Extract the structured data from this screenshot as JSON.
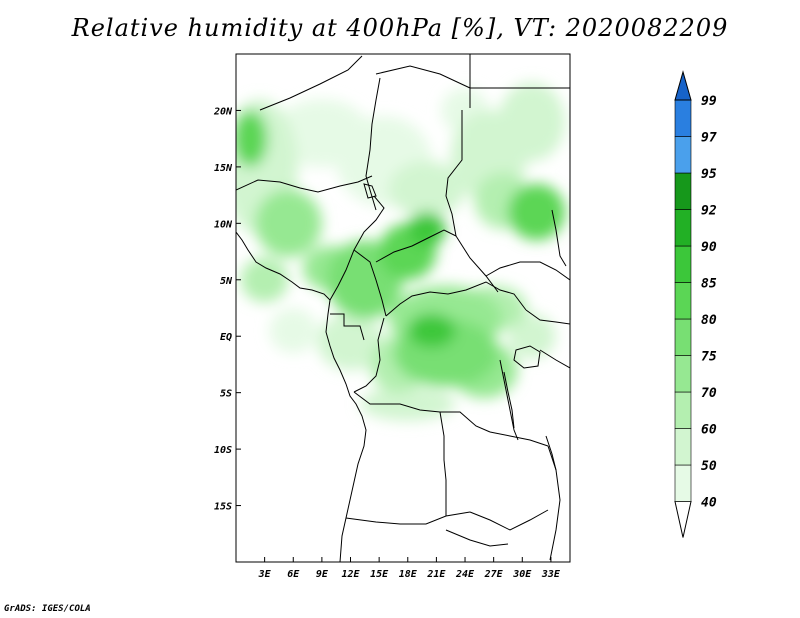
{
  "title": "Relative humidity at 400hPa [%], VT: 2020082209",
  "footer": "GrADS: IGES/COLA",
  "map": {
    "projection": "lat-lon",
    "lon_range": [
      0,
      35
    ],
    "lat_range": [
      -20,
      25
    ],
    "lon_ticks": [
      {
        "value": 3,
        "label": "3E"
      },
      {
        "value": 6,
        "label": "6E"
      },
      {
        "value": 9,
        "label": "9E"
      },
      {
        "value": 12,
        "label": "12E"
      },
      {
        "value": 15,
        "label": "15E"
      },
      {
        "value": 18,
        "label": "18E"
      },
      {
        "value": 21,
        "label": "21E"
      },
      {
        "value": 24,
        "label": "24E"
      },
      {
        "value": 27,
        "label": "27E"
      },
      {
        "value": 30,
        "label": "30E"
      },
      {
        "value": 33,
        "label": "33E"
      }
    ],
    "lat_ticks": [
      {
        "value": 20,
        "label": "20N"
      },
      {
        "value": 15,
        "label": "15N"
      },
      {
        "value": 10,
        "label": "10N"
      },
      {
        "value": 5,
        "label": "5N"
      },
      {
        "value": 0,
        "label": "EQ"
      },
      {
        "value": -5,
        "label": "5S"
      },
      {
        "value": -10,
        "label": "10S"
      },
      {
        "value": -15,
        "label": "15S"
      }
    ]
  },
  "colorbar": {
    "levels": [
      "40",
      "50",
      "60",
      "70",
      "75",
      "80",
      "85",
      "90",
      "92",
      "95",
      "97",
      "99"
    ],
    "colors": [
      "#ffffff",
      "#e6fae6",
      "#d2f5d0",
      "#b4efb0",
      "#96e892",
      "#78df73",
      "#5bd655",
      "#3cc73a",
      "#22b025",
      "#16981b",
      "#4aa0ec",
      "#2a7fe0",
      "#1763c9"
    ]
  },
  "humidity_regions": [
    {
      "lon": 1.5,
      "lat": 17.5,
      "r_lon": 1.8,
      "r_lat": 2.5,
      "level": "80-85"
    },
    {
      "lon": 2.5,
      "lat": 15,
      "r_lon": 4,
      "r_lat": 6,
      "level": "50-60"
    },
    {
      "lon": 9,
      "lat": 18,
      "r_lon": 5,
      "r_lat": 3,
      "level": "40-50"
    },
    {
      "lon": 5.5,
      "lat": 10,
      "r_lon": 3.5,
      "r_lat": 3,
      "level": "70-75"
    },
    {
      "lon": 3,
      "lat": 5,
      "r_lon": 2.5,
      "r_lat": 2,
      "level": "60-70"
    },
    {
      "lon": 10,
      "lat": 6,
      "r_lon": 3,
      "r_lat": 2,
      "level": "70-75"
    },
    {
      "lon": 13.5,
      "lat": 5,
      "r_lon": 4,
      "r_lat": 3.5,
      "level": "75-80"
    },
    {
      "lon": 18,
      "lat": 7.5,
      "r_lon": 3,
      "r_lat": 2.5,
      "level": "80-85"
    },
    {
      "lon": 20,
      "lat": 9.5,
      "r_lon": 2,
      "r_lat": 1.5,
      "level": "85-90"
    },
    {
      "lon": 20,
      "lat": 13,
      "r_lon": 4,
      "r_lat": 2.5,
      "level": "50-60"
    },
    {
      "lon": 15.5,
      "lat": 15.5,
      "r_lon": 5,
      "r_lat": 4,
      "level": "40-50"
    },
    {
      "lon": 26.5,
      "lat": 16,
      "r_lon": 4,
      "r_lat": 4,
      "level": "50-60"
    },
    {
      "lon": 31.5,
      "lat": 11,
      "r_lon": 3,
      "r_lat": 2.5,
      "level": "80-85"
    },
    {
      "lon": 28,
      "lat": 12,
      "r_lon": 3,
      "r_lat": 2.5,
      "level": "60-70"
    },
    {
      "lon": 31,
      "lat": 19,
      "r_lon": 3.5,
      "r_lat": 3.5,
      "level": "50-60"
    },
    {
      "lon": 24,
      "lat": 20,
      "r_lon": 2.5,
      "r_lat": 2,
      "level": "40-50"
    },
    {
      "lon": 22,
      "lat": 1.5,
      "r_lon": 6,
      "r_lat": 3,
      "level": "70-75"
    },
    {
      "lon": 22,
      "lat": -1.5,
      "r_lon": 5.5,
      "r_lat": 3,
      "level": "75-80"
    },
    {
      "lon": 20.5,
      "lat": 0.5,
      "r_lon": 2.5,
      "r_lat": 1.5,
      "level": "85-90"
    },
    {
      "lon": 26,
      "lat": -3,
      "r_lon": 3.5,
      "r_lat": 2.5,
      "level": "70-75"
    },
    {
      "lon": 17,
      "lat": -2.5,
      "r_lon": 3,
      "r_lat": 2.5,
      "level": "60-70"
    },
    {
      "lon": 12,
      "lat": -0.5,
      "r_lon": 3.5,
      "r_lat": 2.5,
      "level": "50-60"
    },
    {
      "lon": 27,
      "lat": 2.5,
      "r_lon": 3.5,
      "r_lat": 2,
      "level": "60-70"
    },
    {
      "lon": 18,
      "lat": -6,
      "r_lon": 5,
      "r_lat": 1.5,
      "level": "50-60"
    },
    {
      "lon": 31,
      "lat": 0,
      "r_lon": 2.5,
      "r_lat": 2,
      "level": "50-60"
    },
    {
      "lon": 6,
      "lat": 0.5,
      "r_lon": 2.5,
      "r_lat": 2,
      "level": "40-50"
    }
  ]
}
